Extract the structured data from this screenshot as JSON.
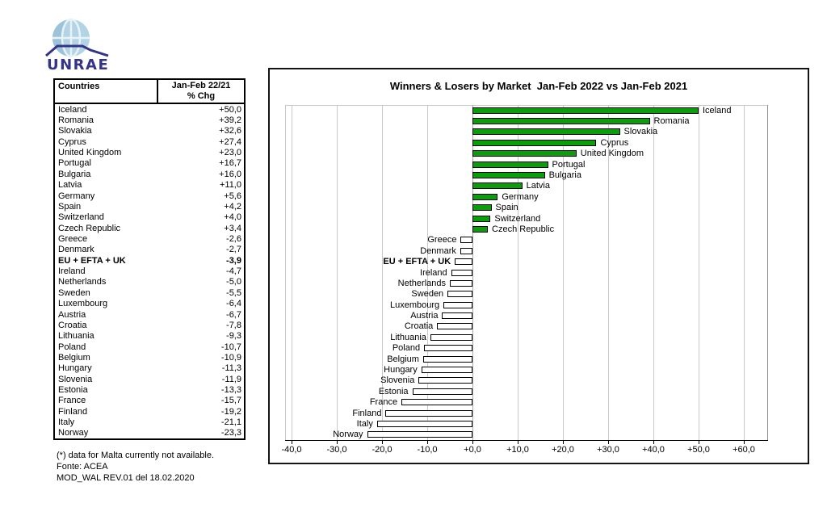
{
  "logo": {
    "text": "UNRAE"
  },
  "table": {
    "header": {
      "countries": "Countries",
      "period": "Jan-Feb 22/21",
      "metric": "% Chg"
    },
    "rows": [
      {
        "country": "Iceland",
        "value": "+50,0"
      },
      {
        "country": "Romania",
        "value": "+39,2"
      },
      {
        "country": "Slovakia",
        "value": "+32,6"
      },
      {
        "country": "Cyprus",
        "value": "+27,4"
      },
      {
        "country": "United Kingdom",
        "value": "+23,0"
      },
      {
        "country": "Portugal",
        "value": "+16,7"
      },
      {
        "country": "Bulgaria",
        "value": "+16,0"
      },
      {
        "country": "Latvia",
        "value": "+11,0"
      },
      {
        "country": "Germany",
        "value": "+5,6"
      },
      {
        "country": "Spain",
        "value": "+4,2"
      },
      {
        "country": "Switzerland",
        "value": "+4,0"
      },
      {
        "country": "Czech Republic",
        "value": "+3,4"
      },
      {
        "country": "Greece",
        "value": "-2,6"
      },
      {
        "country": "Denmark",
        "value": "-2,7"
      },
      {
        "country": "EU + EFTA + UK",
        "value": "-3,9",
        "bold": true
      },
      {
        "country": "Ireland",
        "value": "-4,7"
      },
      {
        "country": "Netherlands",
        "value": "-5,0"
      },
      {
        "country": "Sweden",
        "value": "-5,5"
      },
      {
        "country": "Luxembourg",
        "value": "-6,4"
      },
      {
        "country": "Austria",
        "value": "-6,7"
      },
      {
        "country": "Croatia",
        "value": "-7,8"
      },
      {
        "country": "Lithuania",
        "value": "-9,3"
      },
      {
        "country": "Poland",
        "value": "-10,7"
      },
      {
        "country": "Belgium",
        "value": "-10,9"
      },
      {
        "country": "Hungary",
        "value": "-11,3"
      },
      {
        "country": "Slovenia",
        "value": "-11,9"
      },
      {
        "country": "Estonia",
        "value": "-13,3"
      },
      {
        "country": "France",
        "value": "-15,7"
      },
      {
        "country": "Finland",
        "value": "-19,2"
      },
      {
        "country": "Italy",
        "value": "-21,1"
      },
      {
        "country": "Norway",
        "value": "-23,3"
      }
    ]
  },
  "footer": {
    "line1": "(*) data for Malta currently not available.",
    "line2": "Fonte: ACEA",
    "line3": "MOD_WAL REV.01 del 18.02.2020"
  },
  "chart_data": {
    "type": "bar",
    "orientation": "horizontal",
    "title": "Winners & Losers by Market  Jan-Feb 2022 vs Jan-Feb 2021",
    "categories": [
      "Iceland",
      "Romania",
      "Slovakia",
      "Cyprus",
      "United Kingdom",
      "Portugal",
      "Bulgaria",
      "Latvia",
      "Germany",
      "Spain",
      "Switzerland",
      "Czech Republic",
      "Greece",
      "Denmark",
      "EU + EFTA + UK",
      "Ireland",
      "Netherlands",
      "Sweden",
      "Luxembourg",
      "Austria",
      "Croatia",
      "Lithuania",
      "Poland",
      "Belgium",
      "Hungary",
      "Slovenia",
      "Estonia",
      "France",
      "Finland",
      "Italy",
      "Norway"
    ],
    "values": [
      50.0,
      39.2,
      32.6,
      27.4,
      23.0,
      16.7,
      16.0,
      11.0,
      5.6,
      4.2,
      4.0,
      3.4,
      -2.6,
      -2.7,
      -3.9,
      -4.7,
      -5.0,
      -5.5,
      -6.4,
      -6.7,
      -7.8,
      -9.3,
      -10.7,
      -10.9,
      -11.3,
      -11.9,
      -13.3,
      -15.7,
      -19.2,
      -21.1,
      -23.3
    ],
    "bold_category": "EU + EFTA + UK",
    "xlabel": "",
    "ylabel": "",
    "xlim": [
      -40,
      60
    ],
    "tick_values": [
      -40,
      -30,
      -20,
      -10,
      0,
      10,
      20,
      30,
      40,
      50,
      60
    ],
    "tick_labels": [
      "-40,0",
      "-30,0",
      "-20,0",
      "-10,0",
      "+0,0",
      "+10,0",
      "+20,0",
      "+30,0",
      "+40,0",
      "+50,0",
      "+60,0"
    ],
    "grid": true,
    "legend": false,
    "positive_color": "#0a9e0a",
    "negative_color": "#ffffff",
    "bar_border_color": "#000000"
  }
}
